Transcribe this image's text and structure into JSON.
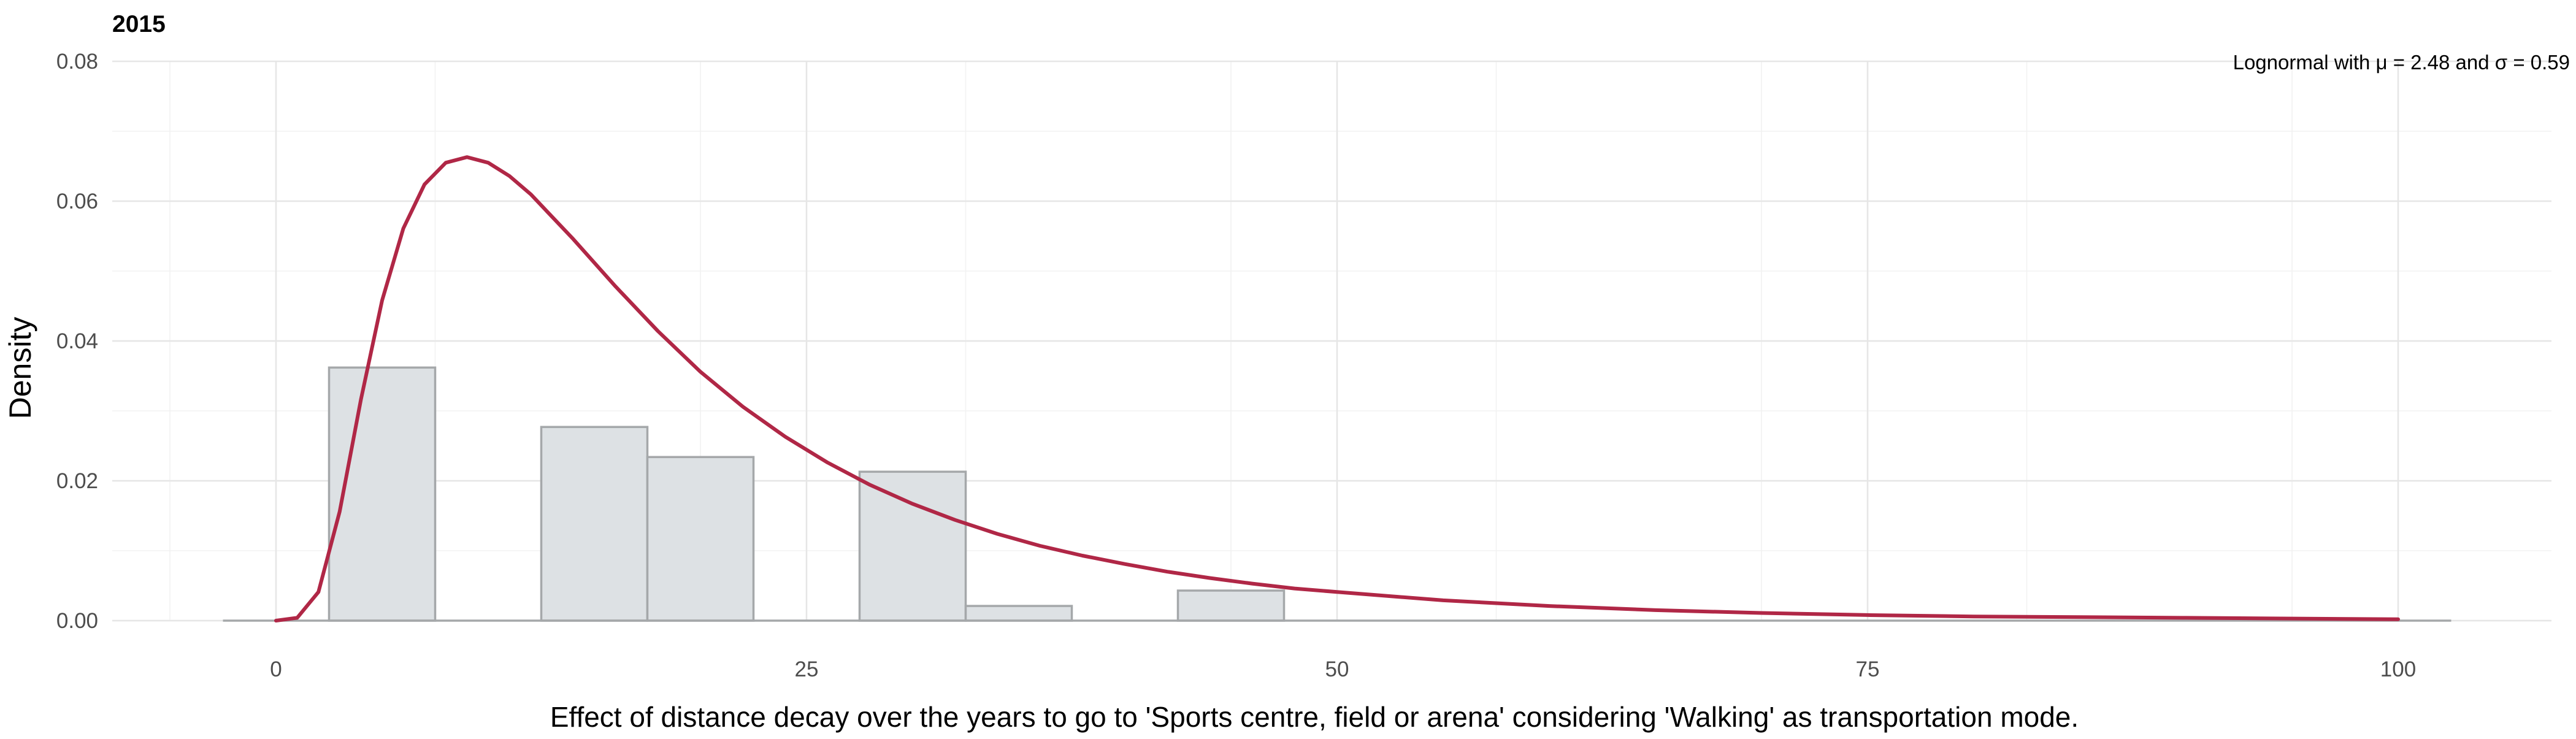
{
  "chart_data": {
    "type": "histogram",
    "title": "2015",
    "xlabel": "Effect of distance decay over the years to go to 'Sports centre, field or arena' considering 'Walking' as transportation mode.",
    "ylabel": "Density",
    "annotation": "Lognormal with μ = 2.48 and σ = 0.59",
    "xlim": [
      -5,
      105
    ],
    "ylim": [
      0,
      0.08
    ],
    "x_ticks": [
      0,
      25,
      50,
      75,
      100
    ],
    "y_ticks": [
      0,
      0.02,
      0.04,
      0.06,
      0.08
    ],
    "x_tick_labels": [
      "0",
      "25",
      "50",
      "75",
      "100"
    ],
    "y_tick_labels": [
      "0.00",
      "0.02",
      "0.04",
      "0.06",
      "0.08"
    ],
    "grid": true,
    "colors": {
      "bar_fill": "#dde1e4",
      "bar_stroke": "#a5a8aa",
      "curve": "#b02746"
    },
    "bins": [
      {
        "x0": -2.5,
        "x1": 2.5,
        "density": 0.0
      },
      {
        "x0": 2.5,
        "x1": 7.5,
        "density": 0.0362
      },
      {
        "x0": 7.5,
        "x1": 12.5,
        "density": 0.0
      },
      {
        "x0": 12.5,
        "x1": 17.5,
        "density": 0.0277
      },
      {
        "x0": 17.5,
        "x1": 22.5,
        "density": 0.0234
      },
      {
        "x0": 22.5,
        "x1": 27.5,
        "density": 0.0
      },
      {
        "x0": 27.5,
        "x1": 32.5,
        "density": 0.0213
      },
      {
        "x0": 32.5,
        "x1": 37.5,
        "density": 0.0021
      },
      {
        "x0": 37.5,
        "x1": 42.5,
        "density": 0.0
      },
      {
        "x0": 42.5,
        "x1": 47.5,
        "density": 0.0043
      },
      {
        "x0": 47.5,
        "x1": 52.5,
        "density": 0.0
      },
      {
        "x0": 52.5,
        "x1": 57.5,
        "density": 0.0
      },
      {
        "x0": 57.5,
        "x1": 62.5,
        "density": 0.0
      },
      {
        "x0": 62.5,
        "x1": 67.5,
        "density": 0.0
      },
      {
        "x0": 67.5,
        "x1": 72.5,
        "density": 0.0
      },
      {
        "x0": 72.5,
        "x1": 77.5,
        "density": 0.0
      },
      {
        "x0": 77.5,
        "x1": 82.5,
        "density": 0.0
      },
      {
        "x0": 82.5,
        "x1": 87.5,
        "density": 0.0
      },
      {
        "x0": 87.5,
        "x1": 92.5,
        "density": 0.0
      },
      {
        "x0": 92.5,
        "x1": 97.5,
        "density": 0.0
      },
      {
        "x0": 97.5,
        "x1": 102.5,
        "density": 0.0
      }
    ],
    "curve": {
      "name": "Lognormal density",
      "x": [
        0,
        1,
        2,
        3,
        4,
        5,
        6,
        7,
        8,
        9,
        10,
        11,
        12,
        14,
        16,
        18,
        20,
        22,
        24,
        26,
        28,
        30,
        32,
        34,
        36,
        38,
        40,
        42,
        44,
        46,
        48,
        50,
        55,
        60,
        65,
        70,
        75,
        80,
        85,
        90,
        95,
        100
      ],
      "y": [
        0.0,
        0.0004,
        0.0041,
        0.0156,
        0.0316,
        0.0458,
        0.0561,
        0.0624,
        0.0655,
        0.0663,
        0.0655,
        0.0636,
        0.061,
        0.0546,
        0.0478,
        0.0414,
        0.0356,
        0.0306,
        0.0263,
        0.0226,
        0.0194,
        0.0167,
        0.0144,
        0.0124,
        0.0107,
        0.0093,
        0.0081,
        0.007,
        0.0061,
        0.0053,
        0.0046,
        0.0041,
        0.0029,
        0.0021,
        0.0015,
        0.0011,
        0.0008,
        0.0006,
        0.0005,
        0.0004,
        0.0003,
        0.0002
      ]
    }
  }
}
